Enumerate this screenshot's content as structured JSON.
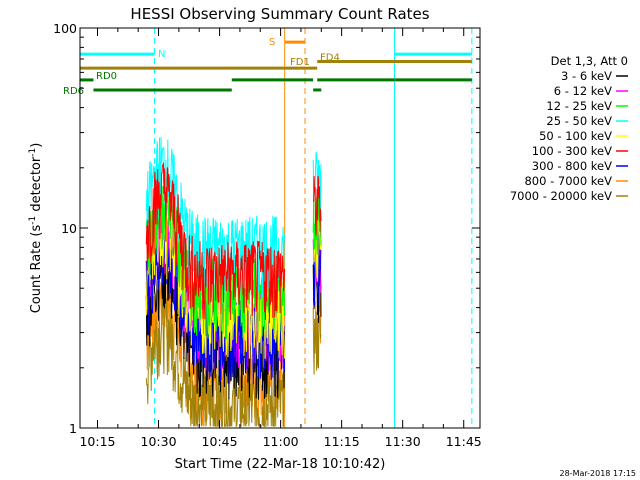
{
  "chart_data": {
    "type": "line",
    "title": "HESSI Observing Summary Count Rates",
    "xlabel": "Start Time (22-Mar-18 10:10:42)",
    "ylabel_main": "Count Rate (s",
    "ylabel_sup1": "-1",
    "ylabel_mid": " detector",
    "ylabel_sup2": "-1",
    "ylabel_end": ")",
    "y_scale": "log",
    "ylim": [
      1,
      100
    ],
    "xlim": [
      "10:10:42",
      "11:49:00"
    ],
    "x_ticks": [
      "10:15",
      "10:30",
      "10:45",
      "11:00",
      "11:15",
      "11:30",
      "11:45"
    ],
    "y_ticks": [
      "1",
      "10",
      "100"
    ],
    "legend_title": "Det 1,3, Att 0",
    "legend_placement": "right",
    "series": [
      {
        "name": "3 - 6 keV",
        "color": "#000000"
      },
      {
        "name": "6 - 12 keV",
        "color": "#ff00ff"
      },
      {
        "name": "12 - 25 keV",
        "color": "#00ff00"
      },
      {
        "name": "25 - 50 keV",
        "color": "#00ffff"
      },
      {
        "name": "50 - 100 keV",
        "color": "#ffff00"
      },
      {
        "name": "100 - 300 keV",
        "color": "#ff0000"
      },
      {
        "name": "300 - 800 keV",
        "color": "#0000ff"
      },
      {
        "name": "800 - 7000 keV",
        "color": "#ff8c00"
      },
      {
        "name": "7000 - 20000 keV",
        "color": "#a0820a"
      }
    ],
    "flags": [
      {
        "label": "N",
        "color": "#00ffff",
        "level": 74,
        "segments": [
          [
            "10:10:42",
            "10:29:00"
          ],
          [
            "11:28:00",
            "11:47:00"
          ]
        ]
      },
      {
        "label": "S",
        "color": "#ff8c00",
        "level": 85,
        "segments": [
          [
            "11:01:00",
            "11:06:00"
          ]
        ]
      },
      {
        "label": "FD1",
        "color": "#a0820a",
        "level": 63,
        "segments": [
          [
            "10:10:42",
            "11:09:00"
          ]
        ]
      },
      {
        "label": "FD4",
        "color": "#a0820a",
        "level": 68,
        "segments": [
          [
            "11:09:00",
            "11:47:00"
          ]
        ]
      },
      {
        "label": "RD0",
        "color": "#007800",
        "level": 55,
        "segments": [
          [
            "10:10:42",
            "10:14:00"
          ],
          [
            "10:48:00",
            "11:08:00"
          ],
          [
            "11:09:00",
            "11:47:00"
          ]
        ]
      },
      {
        "label": "RD6",
        "color": "#007800",
        "level": 49,
        "segments": [
          [
            "10:14:00",
            "10:48:00"
          ],
          [
            "11:08:00",
            "11:10:00"
          ]
        ]
      }
    ],
    "vlines": [
      {
        "time": "10:10:42",
        "color": "#00ffff",
        "style": "solid"
      },
      {
        "time": "10:29:00",
        "color": "#00ffff",
        "style": "dashed"
      },
      {
        "time": "11:28:00",
        "color": "#00ffff",
        "style": "solid"
      },
      {
        "time": "11:47:00",
        "color": "#00ffff",
        "style": "dashed"
      },
      {
        "time": "11:01:00",
        "color": "#ff8c00",
        "style": "solid"
      },
      {
        "time": "11:06:00",
        "color": "#ff8c00",
        "style": "dashed"
      }
    ],
    "data_windows": [
      [
        "10:27:00",
        "11:01:00"
      ],
      [
        "11:08:00",
        "11:10:00"
      ]
    ],
    "approx_levels": {
      "3 - 6 keV": 2.5,
      "6 - 12 keV": 3.5,
      "12 - 25 keV": 5.0,
      "25 - 50 keV": 8.0,
      "50 - 100 keV": 4.0,
      "100 - 300 keV": 6.0,
      "300 - 800 keV": 3.0,
      "800 - 7000 keV": 1.8,
      "7000 - 20000 keV": 1.3
    }
  },
  "footer_date": "28-Mar-2018 17:15"
}
